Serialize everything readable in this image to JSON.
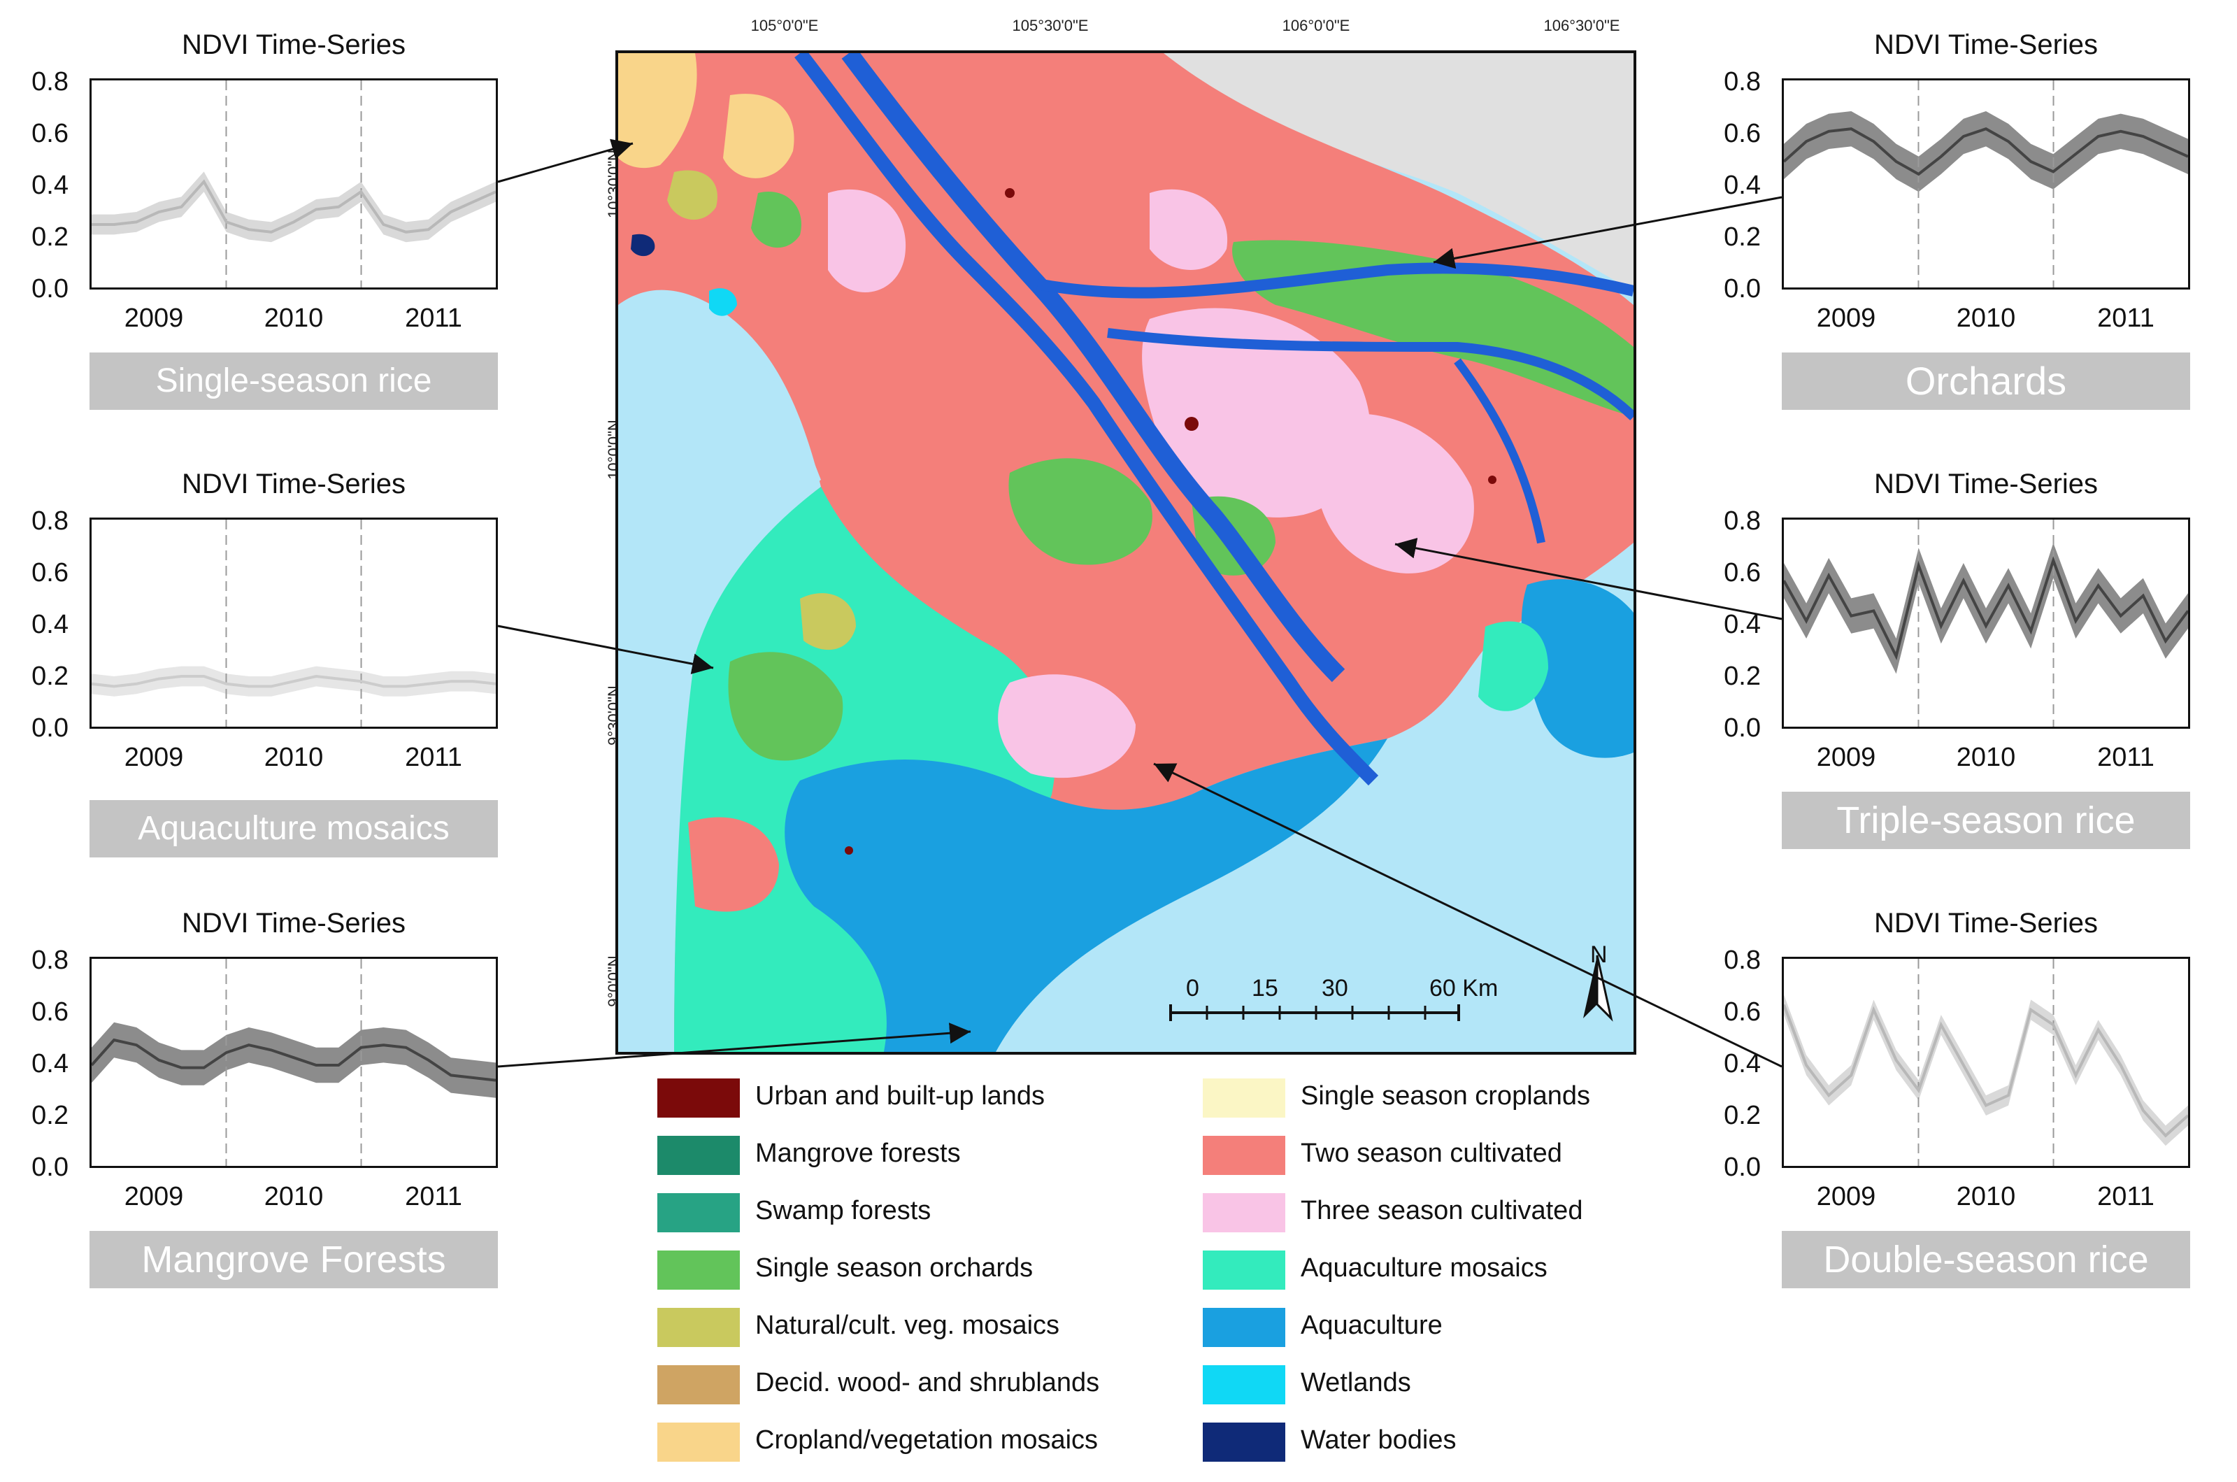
{
  "colors": {
    "urban": "#7b0a0a",
    "mangrove": "#1c8a6a",
    "swamp": "#27a384",
    "orchards": "#62c45a",
    "natural": "#c9c95e",
    "decid": "#cfa463",
    "cropveg": "#f9d58a",
    "single": "#fbf6c5",
    "two": "#f47f7a",
    "three": "#f9c4e6",
    "aquamosaic": "#33ebbd",
    "aquaculture": "#1aa0e0",
    "wetlands": "#10d8f5",
    "water": "#0f2a78",
    "sea": "#b3e6f8",
    "river": "#1f5fd6",
    "gray": "#e0e0e0"
  },
  "panels": [
    {
      "title": "NDVI Time-Series",
      "label": "Single-season rice",
      "yticks": [
        "0.8",
        "0.6",
        "0.4",
        "0.2",
        "0.0"
      ],
      "xticks": [
        "2009",
        "2010",
        "2011"
      ],
      "shade": "light",
      "series": [
        0.25,
        0.25,
        0.26,
        0.3,
        0.32,
        0.42,
        0.26,
        0.23,
        0.22,
        0.26,
        0.31,
        0.32,
        0.38,
        0.25,
        0.22,
        0.23,
        0.3,
        0.34,
        0.38
      ]
    },
    {
      "title": "NDVI Time-Series",
      "label": "Aquaculture mosaics",
      "yticks": [
        "0.8",
        "0.6",
        "0.4",
        "0.2",
        "0.0"
      ],
      "xticks": [
        "2009",
        "2010",
        "2011"
      ],
      "shade": "lighter",
      "series": [
        0.17,
        0.16,
        0.17,
        0.19,
        0.2,
        0.2,
        0.17,
        0.16,
        0.16,
        0.18,
        0.2,
        0.19,
        0.18,
        0.16,
        0.16,
        0.17,
        0.18,
        0.18,
        0.17
      ]
    },
    {
      "title": "NDVI Time-Series",
      "label": "Mangrove Forests",
      "yticks": [
        "0.8",
        "0.6",
        "0.4",
        "0.2",
        "0.0"
      ],
      "xticks": [
        "2009",
        "2010",
        "2011"
      ],
      "shade": "dark",
      "series": [
        0.4,
        0.5,
        0.48,
        0.42,
        0.39,
        0.39,
        0.45,
        0.48,
        0.46,
        0.43,
        0.4,
        0.4,
        0.47,
        0.48,
        0.47,
        0.42,
        0.36,
        0.35,
        0.34
      ]
    },
    {
      "title": "NDVI Time-Series",
      "label": "Orchards",
      "yticks": [
        "0.8",
        "0.6",
        "0.4",
        "0.2",
        "0.0"
      ],
      "xticks": [
        "2009",
        "2010",
        "2011"
      ],
      "shade": "dark",
      "series": [
        0.5,
        0.58,
        0.62,
        0.63,
        0.58,
        0.5,
        0.45,
        0.52,
        0.6,
        0.63,
        0.58,
        0.5,
        0.46,
        0.53,
        0.6,
        0.62,
        0.6,
        0.56,
        0.52
      ]
    },
    {
      "title": "NDVI Time-Series",
      "label": "Triple-season rice",
      "yticks": [
        "0.8",
        "0.6",
        "0.4",
        "0.2",
        "0.0"
      ],
      "xticks": [
        "2009",
        "2010",
        "2011"
      ],
      "shade": "dark",
      "series": [
        0.58,
        0.42,
        0.6,
        0.44,
        0.46,
        0.28,
        0.64,
        0.4,
        0.58,
        0.4,
        0.56,
        0.38,
        0.66,
        0.42,
        0.56,
        0.44,
        0.52,
        0.34,
        0.46
      ]
    },
    {
      "title": "NDVI Time-Series",
      "label": "Double-season rice",
      "yticks": [
        "0.8",
        "0.6",
        "0.4",
        "0.2",
        "0.0"
      ],
      "xticks": [
        "2009",
        "2010",
        "2011"
      ],
      "shade": "light",
      "series": [
        0.64,
        0.4,
        0.28,
        0.36,
        0.62,
        0.42,
        0.3,
        0.56,
        0.4,
        0.24,
        0.28,
        0.62,
        0.56,
        0.36,
        0.54,
        0.4,
        0.22,
        0.12,
        0.2
      ]
    }
  ],
  "map": {
    "lon_labels": [
      "105°0'0\"E",
      "105°30'0\"E",
      "106°0'0\"E",
      "106°30'0\"E"
    ],
    "lat_labels": [
      "10°30'0\"N",
      "10°0'0\"N",
      "9°30'0\"N",
      "9°0'0\"N"
    ],
    "scale_labels": [
      "0",
      "15",
      "30",
      "60 Km"
    ],
    "north_label": "N"
  },
  "legend_left": [
    {
      "label": "Urban and built-up lands",
      "color_key": "urban"
    },
    {
      "label": "Mangrove forests",
      "color_key": "mangrove"
    },
    {
      "label": "Swamp forests",
      "color_key": "swamp"
    },
    {
      "label": "Single season orchards",
      "color_key": "orchards"
    },
    {
      "label": "Natural/cult. veg. mosaics",
      "color_key": "natural"
    },
    {
      "label": "Decid. wood- and shrublands",
      "color_key": "decid"
    },
    {
      "label": "Cropland/vegetation mosaics",
      "color_key": "cropveg"
    }
  ],
  "legend_right": [
    {
      "label": "Single season croplands",
      "color_key": "single"
    },
    {
      "label": "Two season cultivated",
      "color_key": "two"
    },
    {
      "label": "Three season cultivated",
      "color_key": "three"
    },
    {
      "label": "Aquaculture mosaics",
      "color_key": "aquamosaic"
    },
    {
      "label": "Aquaculture",
      "color_key": "aquaculture"
    },
    {
      "label": "Wetlands",
      "color_key": "wetlands"
    },
    {
      "label": "Water bodies",
      "color_key": "water"
    }
  ]
}
